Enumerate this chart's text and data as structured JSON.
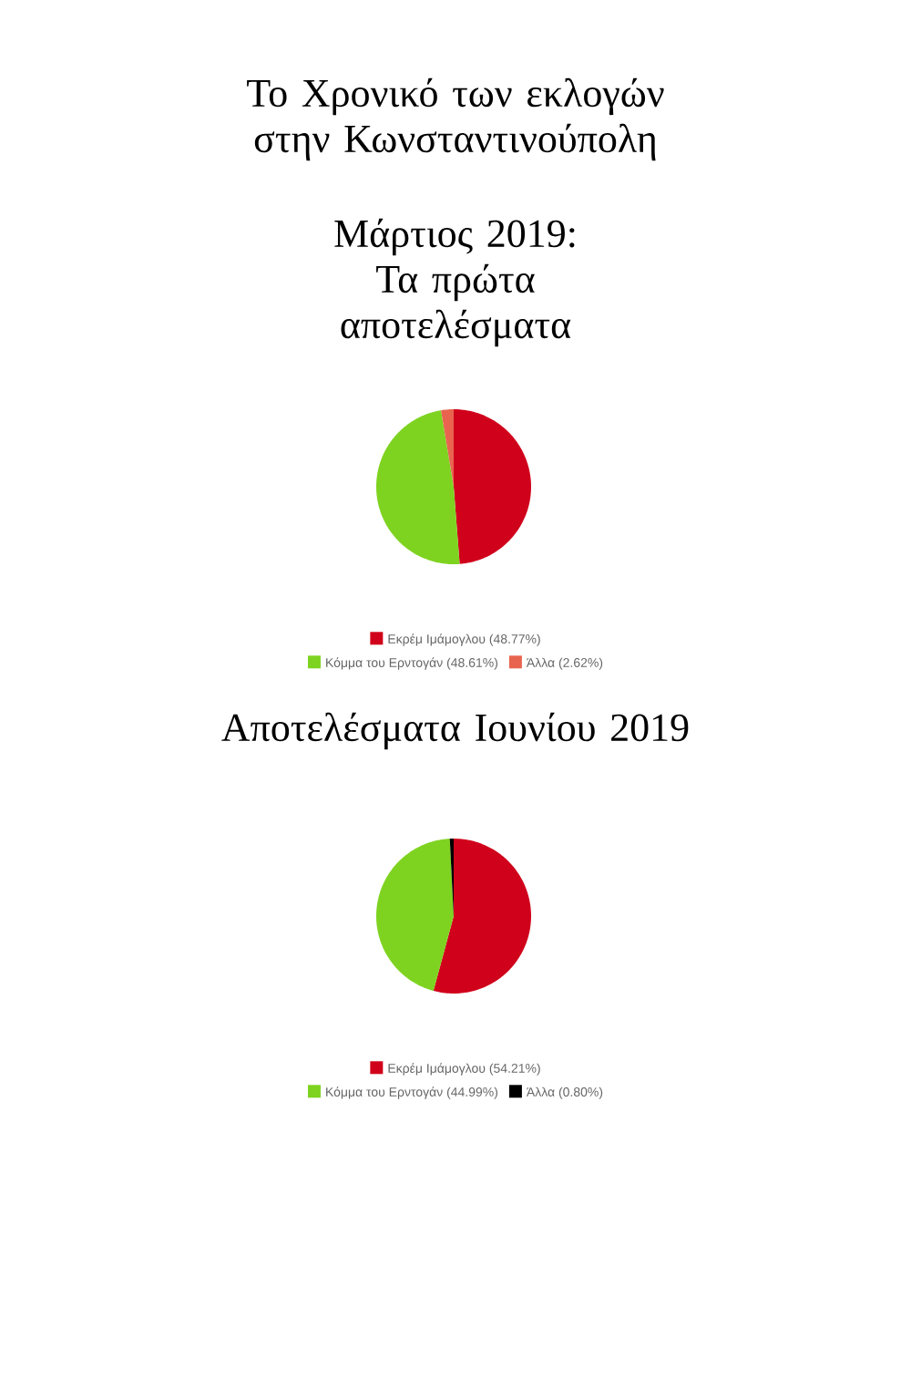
{
  "chart_data": [
    {
      "type": "pie",
      "title": "Το Χρονικό των εκλογών στην Κωνσταντινούπολη",
      "subtitle": "Μάρτιος 2019: Τα πρώτα αποτελέσματα",
      "categories": [
        "Εκρέμ Ιμάμογλου (48.77%)",
        "Κόμμα του Ερντογάν (48.61%)",
        "Άλλα (2.62%)"
      ],
      "values": [
        48.77,
        48.61,
        2.62
      ],
      "colors": [
        "#d0021b",
        "#7ed321",
        "#e8644f"
      ],
      "legend": "bottom"
    },
    {
      "type": "pie",
      "title": "Αποτελέσματα Ιουνίου 2019",
      "categories": [
        "Εκρέμ Ιμάμογλου (54.21%)",
        "Κόμμα του Ερντογάν (44.99%)",
        "Άλλα (0.80%)"
      ],
      "values": [
        54.21,
        44.99,
        0.8
      ],
      "colors": [
        "#d0021b",
        "#7ed321",
        "#000000"
      ],
      "legend": "bottom"
    }
  ]
}
